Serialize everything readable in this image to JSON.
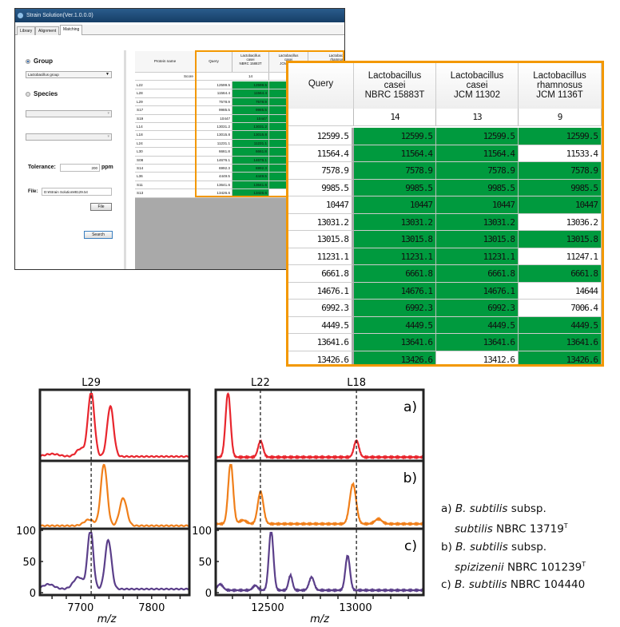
{
  "app": {
    "title": "Strain Solution(Ver.1.0.0.0)",
    "tabs": [
      "Library",
      "Alignment",
      "Matching"
    ],
    "active_tab": "Matching"
  },
  "left_panel": {
    "group_label": "Group",
    "group_selected": true,
    "group_value": "Lactobacillus group",
    "species_label": "Species",
    "tolerance_label": "Tolerance:",
    "tolerance_value": "200",
    "tolerance_unit": "ppm",
    "file_label": "File:",
    "file_value": "D:¥Strain Solution¥8129.txt",
    "file_button": "File",
    "search_button": "Search"
  },
  "table": {
    "protein_header": "Protein name",
    "score_label": "Score",
    "query_header": "Query",
    "columns": [
      {
        "name": [
          "Lactobacillus",
          "casei",
          "NBRC 15883T"
        ],
        "score": "14"
      },
      {
        "name": [
          "Lactobacillus",
          "casei",
          "JCM 11302"
        ],
        "score": "13"
      },
      {
        "name": [
          "Lactobacillus",
          "rhamnosus",
          "JCM 1136T"
        ],
        "score": "9"
      }
    ],
    "rows": [
      {
        "protein": "L22",
        "query": "12599.5",
        "vals": [
          "12599.5",
          "12599.5",
          "12599.5"
        ],
        "match": [
          1,
          1,
          1
        ]
      },
      {
        "protein": "L28",
        "query": "11564.4",
        "vals": [
          "11564.4",
          "11564.4",
          "11533.4"
        ],
        "match": [
          1,
          1,
          0
        ]
      },
      {
        "protein": "L29",
        "query": "7578.9",
        "vals": [
          "7578.9",
          "7578.9",
          "7578.9"
        ],
        "match": [
          1,
          1,
          1
        ]
      },
      {
        "protein": "S17",
        "query": "9985.5",
        "vals": [
          "9985.5",
          "9985.5",
          "9985.5"
        ],
        "match": [
          1,
          1,
          1
        ]
      },
      {
        "protein": "S19",
        "query": "10447",
        "vals": [
          "10447",
          "10447",
          "10447"
        ],
        "match": [
          1,
          1,
          1
        ]
      },
      {
        "protein": "L14",
        "query": "13031.2",
        "vals": [
          "13031.2",
          "13031.2",
          "13036.2"
        ],
        "match": [
          1,
          1,
          0
        ]
      },
      {
        "protein": "L18",
        "query": "13015.8",
        "vals": [
          "13015.8",
          "13015.8",
          "13015.8"
        ],
        "match": [
          1,
          1,
          1
        ]
      },
      {
        "protein": "L24",
        "query": "11231.1",
        "vals": [
          "11231.1",
          "11231.1",
          "11247.1"
        ],
        "match": [
          1,
          1,
          0
        ]
      },
      {
        "protein": "L30",
        "query": "6661.8",
        "vals": [
          "6661.8",
          "6661.8",
          "6661.8"
        ],
        "match": [
          1,
          1,
          1
        ]
      },
      {
        "protein": "S08",
        "query": "14676.1",
        "vals": [
          "14676.1",
          "14676.1",
          "14644"
        ],
        "match": [
          1,
          1,
          0
        ]
      },
      {
        "protein": "S14",
        "query": "6992.3",
        "vals": [
          "6992.3",
          "6992.3",
          "7006.4"
        ],
        "match": [
          1,
          1,
          0
        ]
      },
      {
        "protein": "L36",
        "query": "4449.5",
        "vals": [
          "4449.5",
          "4449.5",
          "4449.5"
        ],
        "match": [
          1,
          1,
          1
        ]
      },
      {
        "protein": "S11",
        "query": "13641.6",
        "vals": [
          "13641.6",
          "13641.6",
          "13641.6"
        ],
        "match": [
          1,
          1,
          1
        ]
      },
      {
        "protein": "S13",
        "query": "13426.6",
        "vals": [
          "13426.6",
          "13412.6",
          "13426.6"
        ],
        "match": [
          1,
          0,
          1
        ]
      }
    ]
  },
  "colors": {
    "match": "#009a3e",
    "highlight": "#f39800",
    "a": "#e8262e",
    "b": "#f07f1a",
    "c": "#5b3f8a"
  },
  "chart_data": [
    {
      "type": "line",
      "xlabel": "m/z",
      "xlim": [
        7643,
        7853
      ],
      "ylim": [
        0,
        100
      ],
      "xticks": [
        7700,
        7800
      ],
      "yticks": [
        0,
        50,
        100
      ],
      "marker": {
        "label": "L29",
        "x": 7715
      },
      "series": [
        {
          "label": "a)",
          "peaks": [
            [
              7715,
              100,
              4.5
            ],
            [
              7742,
              78,
              4.5
            ],
            [
              7700,
              12,
              6
            ],
            [
              7660,
              4,
              10
            ]
          ],
          "baseline": 3
        },
        {
          "label": "b)",
          "peaks": [
            [
              7733,
              100,
              4.5
            ],
            [
              7760,
              45,
              5
            ],
            [
              7712,
              10,
              7
            ]
          ],
          "baseline": 1
        },
        {
          "label": "c)",
          "peaks": [
            [
              7714,
              100,
              4
            ],
            [
              7739,
              82,
              4.5
            ],
            [
              7697,
              20,
              7
            ],
            [
              7655,
              8,
              8
            ]
          ],
          "baseline": 6
        }
      ]
    },
    {
      "type": "line",
      "xlabel": "m/z",
      "xlim": [
        12205,
        13386
      ],
      "ylim": [
        0,
        100
      ],
      "xticks": [
        12500,
        13000
      ],
      "marker": {
        "labels": [
          {
            "label": "L22",
            "x": 12459
          },
          {
            "label": "L18",
            "x": 13005
          }
        ]
      },
      "series": [
        {
          "label": "a)",
          "peaks": [
            [
              12275,
              100,
              14
            ],
            [
              12460,
              25,
              14
            ],
            [
              13005,
              26,
              14
            ]
          ],
          "baseline": 2
        },
        {
          "label": "b)",
          "peaks": [
            [
              12290,
              100,
              14
            ],
            [
              12460,
              52,
              16
            ],
            [
              12985,
              65,
              18
            ],
            [
              12360,
              6,
              20
            ],
            [
              13130,
              8,
              20
            ]
          ],
          "baseline": 4
        },
        {
          "label": "c)",
          "peaks": [
            [
              12230,
              10,
              16
            ],
            [
              12520,
              100,
              13
            ],
            [
              12630,
              25,
              11
            ],
            [
              12750,
              22,
              14
            ],
            [
              12955,
              58,
              13
            ],
            [
              12430,
              8,
              14
            ]
          ],
          "baseline": 4
        }
      ]
    }
  ],
  "legend": [
    {
      "prefix": "a)",
      "genus": "B. subtilis",
      "mid": "subsp.",
      "sub": "subtilis",
      "strain": "NBRC 13719",
      "sup": "T"
    },
    {
      "prefix": "b)",
      "genus": "B. subtilis",
      "mid": "subsp.",
      "sub": "spizizenii",
      "strain": "NBRC 101239",
      "sup": "T"
    },
    {
      "prefix": "c)",
      "genus": "B. subtilis",
      "strain": "NBRC 104440"
    }
  ]
}
